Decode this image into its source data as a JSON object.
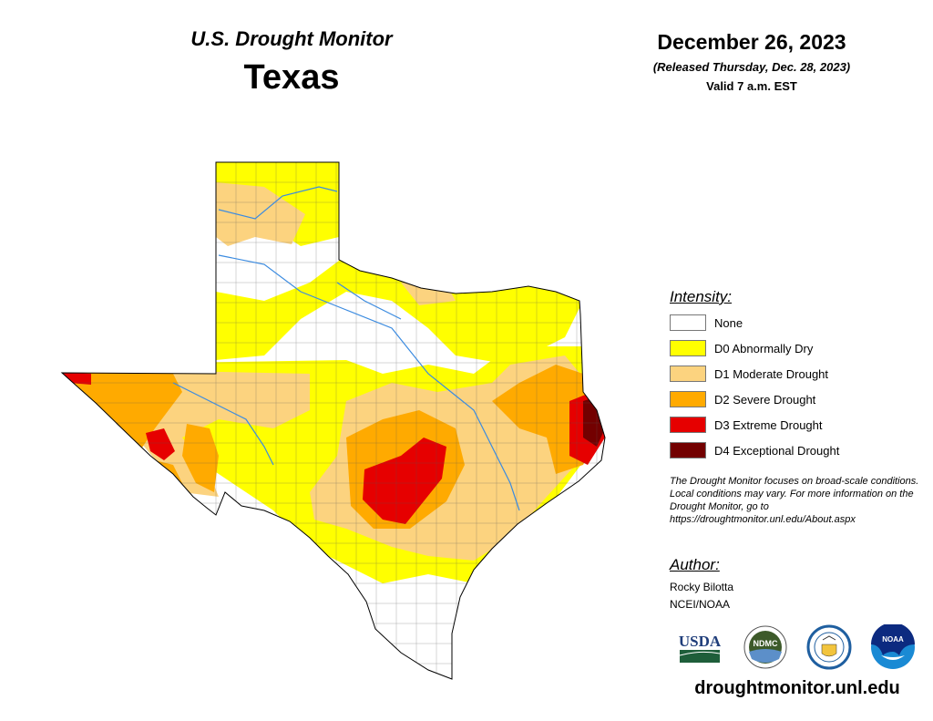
{
  "header": {
    "product": "U.S. Drought Monitor",
    "state": "Texas",
    "date": "December 26, 2023",
    "released": "(Released Thursday, Dec. 28, 2023)",
    "valid": "Valid 7 a.m. EST"
  },
  "legend": {
    "title": "Intensity:",
    "items": [
      {
        "label": "None",
        "color": "#ffffff"
      },
      {
        "label": "D0 Abnormally Dry",
        "color": "#ffff00"
      },
      {
        "label": "D1 Moderate Drought",
        "color": "#fcd37f"
      },
      {
        "label": "D2 Severe Drought",
        "color": "#ffaa00"
      },
      {
        "label": "D3 Extreme Drought",
        "color": "#e60000"
      },
      {
        "label": "D4 Exceptional Drought",
        "color": "#730000"
      }
    ]
  },
  "note": "The Drought Monitor focuses on broad-scale conditions. Local conditions may vary. For more information on the Drought Monitor, go to https://droughtmonitor.unl.edu/About.aspx",
  "author": {
    "title": "Author:",
    "name": "Rocky Bilotta",
    "org": "NCEI/NOAA"
  },
  "logos": {
    "usda": "USDA",
    "ndmc": "NDMC",
    "noaa": "NOAA"
  },
  "url": "droughtmonitor.unl.edu"
}
